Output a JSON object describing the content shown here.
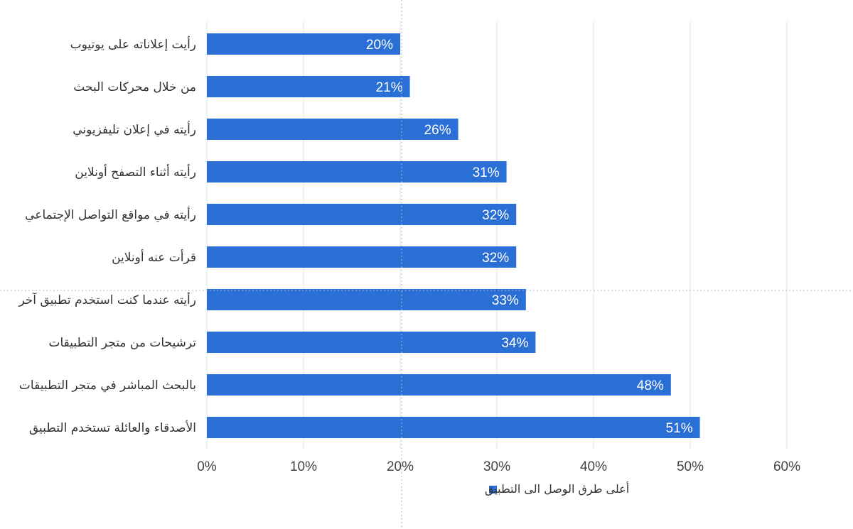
{
  "chart_data": {
    "type": "bar",
    "orientation": "horizontal",
    "categories": [
      "رأيت إعلاناته على يوتيوب",
      "من خلال محركات البحث",
      "رأيته في إعلان تليفزيوني",
      "رأيته أثناء التصفح أونلاين",
      "رأيته في مواقع التواصل الإجتماعي",
      "قرأت عنه أونلاين",
      "رأيته عندما كنت استخدم تطبيق آخر",
      "ترشيحات من متجر التطبيقات",
      "بالبحث المباشر في متجر التطبيقات",
      "الأصدقاء والعائلة تستخدم التطبيق"
    ],
    "series": [
      {
        "name": "أعلى طرق الوصل الى التطبيق",
        "values": [
          20,
          21,
          26,
          31,
          32,
          32,
          33,
          34,
          48,
          51
        ],
        "color": "#2a6fd6"
      }
    ],
    "value_labels": [
      "20%",
      "21%",
      "26%",
      "31%",
      "32%",
      "32%",
      "33%",
      "34%",
      "48%",
      "51%"
    ],
    "xlim": [
      0,
      60
    ],
    "x_ticks": [
      0,
      10,
      20,
      30,
      40,
      50,
      60
    ],
    "x_tick_labels": [
      "0%",
      "10%",
      "20%",
      "30%",
      "40%",
      "50%",
      "60%"
    ],
    "grid": "vertical",
    "legend": {
      "placement": "bottom-center",
      "label": "أعلى طرق الوصل الى التطبيق"
    },
    "colors": {
      "bar": "#2a6fd6",
      "grid": "#e3e3e3",
      "crosshair": "#b5b5b5"
    }
  }
}
